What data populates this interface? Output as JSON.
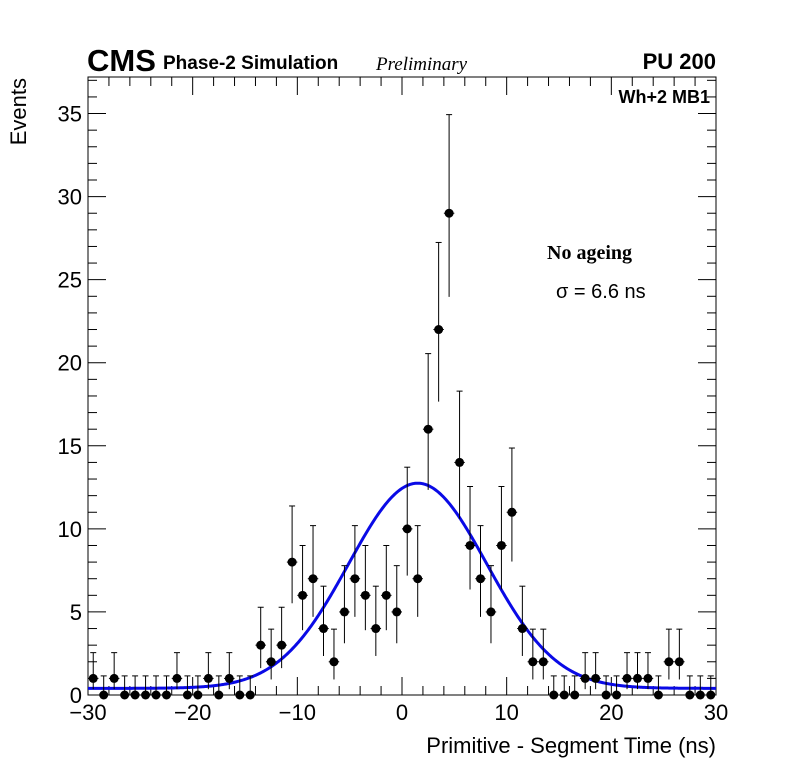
{
  "header": {
    "experiment": "CMS",
    "subtitle": "Phase-2 Simulation",
    "status": "Preliminary",
    "pileup": "PU 200"
  },
  "chart_data": {
    "type": "scatter",
    "title": "",
    "xlabel": "Primitive - Segment Time (ns)",
    "ylabel": "Events",
    "xlim": [
      -30,
      30
    ],
    "ylim": [
      0,
      37.2
    ],
    "x_ticks": [
      -30,
      -20,
      -10,
      0,
      10,
      20,
      30
    ],
    "y_ticks": [
      0,
      5,
      10,
      15,
      20,
      25,
      30,
      35
    ],
    "x_tick_labels": [
      "−30",
      "−20",
      "−10",
      "0",
      "10",
      "20",
      "30"
    ],
    "y_tick_labels": [
      "0",
      "5",
      "10",
      "15",
      "20",
      "25",
      "30",
      "35"
    ],
    "bin_width": 1,
    "annotations": {
      "chamber": "Wh+2 MB1",
      "condition": "No ageing",
      "resolution": "σ = 6.6 ns"
    },
    "series": [
      {
        "name": "Simulated events",
        "kind": "points-with-errors",
        "x": [
          -29.5,
          -28.5,
          -27.5,
          -26.5,
          -25.5,
          -24.5,
          -23.5,
          -22.5,
          -21.5,
          -20.5,
          -19.5,
          -18.5,
          -17.5,
          -16.5,
          -15.5,
          -14.5,
          -13.5,
          -12.5,
          -11.5,
          -10.5,
          -9.5,
          -8.5,
          -7.5,
          -6.5,
          -5.5,
          -4.5,
          -3.5,
          -2.5,
          -1.5,
          -0.5,
          0.5,
          1.5,
          2.5,
          3.5,
          4.5,
          5.5,
          6.5,
          7.5,
          8.5,
          9.5,
          10.5,
          11.5,
          12.5,
          13.5,
          14.5,
          15.5,
          16.5,
          17.5,
          18.5,
          19.5,
          20.5,
          21.5,
          22.5,
          23.5,
          24.5,
          25.5,
          26.5,
          27.5,
          28.5,
          29.5
        ],
        "values": [
          1,
          0,
          1,
          0,
          0,
          0,
          0,
          0,
          1,
          0,
          0,
          1,
          0,
          1,
          0,
          0,
          3,
          2,
          3,
          8,
          6,
          7,
          4,
          2,
          5,
          7,
          6,
          4,
          6,
          5,
          10,
          7,
          16,
          22,
          29,
          14,
          9,
          7,
          5,
          9,
          11,
          4,
          2,
          2,
          0,
          0,
          0,
          1,
          1,
          0,
          0,
          1,
          1,
          1,
          0,
          2,
          2,
          0,
          0,
          0
        ]
      },
      {
        "name": "Gaussian fit",
        "kind": "line",
        "color": "#0a0ae6",
        "mean": 1.5,
        "sigma": 6.6,
        "amplitude": 12.35,
        "baseline": 0.4
      }
    ]
  }
}
